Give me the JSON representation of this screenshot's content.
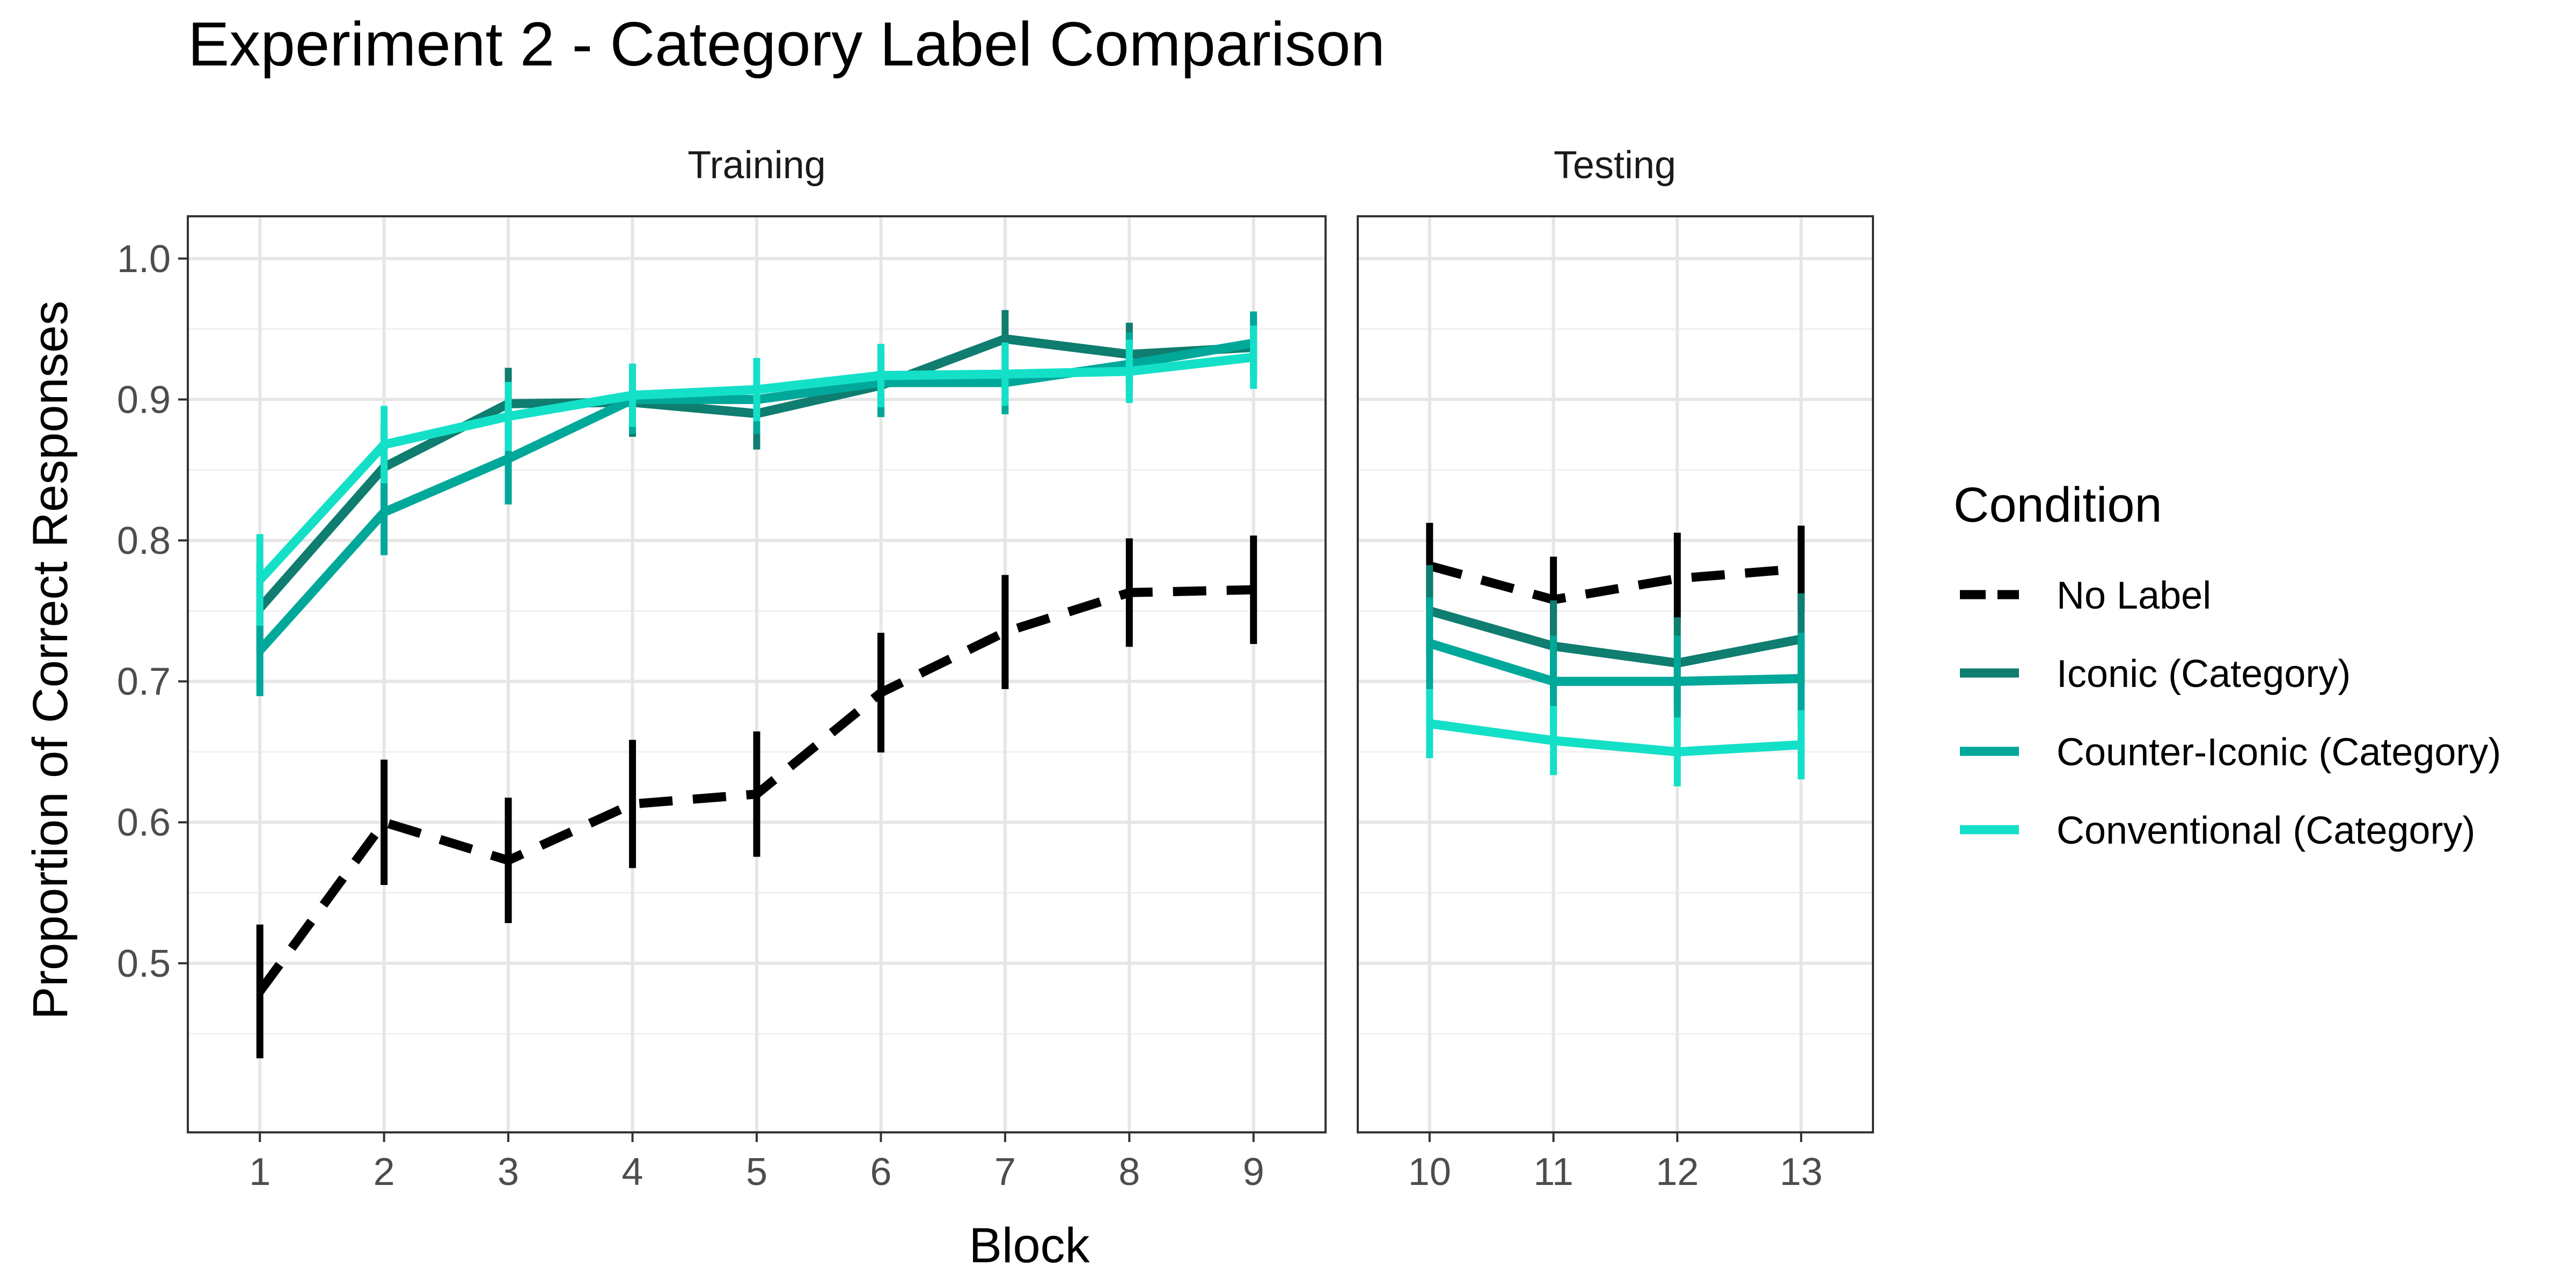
{
  "chart_data": {
    "type": "line",
    "title": "Experiment 2 - Category Label Comparison",
    "xlabel": "Block",
    "ylabel": "Proportion of Correct Responses",
    "ylim": [
      0.38,
      1.03
    ],
    "yticks": [
      0.5,
      0.6,
      0.7,
      0.8,
      0.9,
      1.0
    ],
    "ytick_labels": [
      "0.5",
      "0.6",
      "0.7",
      "0.8",
      "0.9",
      "1.0"
    ],
    "grid": true,
    "legend": {
      "title": "Condition",
      "position": "right"
    },
    "panels": [
      {
        "label": "Training",
        "x": [
          1,
          2,
          3,
          4,
          5,
          6,
          7,
          8,
          9
        ],
        "xlim": [
          0.42,
          9.58
        ]
      },
      {
        "label": "Testing",
        "x": [
          10,
          11,
          12,
          13
        ],
        "xlim": [
          9.42,
          13.58
        ]
      }
    ],
    "series": [
      {
        "name": "No Label",
        "color": "#000000",
        "dashed": true,
        "values": [
          0.48,
          0.6,
          0.573,
          0.613,
          0.62,
          0.692,
          0.735,
          0.763,
          0.765,
          0.782,
          0.758,
          0.773,
          0.78
        ],
        "errors": [
          0.045,
          0.042,
          0.042,
          0.043,
          0.042,
          0.04,
          0.038,
          0.036,
          0.036,
          0.028,
          0.028,
          0.03,
          0.028
        ]
      },
      {
        "name": "Iconic (Category)",
        "color": "#0f7d6f",
        "dashed": false,
        "values": [
          0.752,
          0.852,
          0.897,
          0.898,
          0.89,
          0.91,
          0.943,
          0.932,
          0.937,
          0.75,
          0.725,
          0.713,
          0.73
        ],
        "errors": [
          0.03,
          0.027,
          0.023,
          0.022,
          0.023,
          0.02,
          0.018,
          0.02,
          0.02,
          0.03,
          0.03,
          0.03,
          0.03
        ]
      },
      {
        "name": "Counter-Iconic (Category)",
        "color": "#00a89a",
        "dashed": false,
        "values": [
          0.722,
          0.82,
          0.858,
          0.9,
          0.9,
          0.912,
          0.912,
          0.925,
          0.94,
          0.727,
          0.7,
          0.7,
          0.702
        ],
        "errors": [
          0.03,
          0.028,
          0.03,
          0.022,
          0.022,
          0.022,
          0.02,
          0.02,
          0.02,
          0.03,
          0.03,
          0.03,
          0.03
        ]
      },
      {
        "name": "Conventional (Category)",
        "color": "#14e0c8",
        "dashed": false,
        "values": [
          0.772,
          0.868,
          0.888,
          0.903,
          0.907,
          0.917,
          0.918,
          0.92,
          0.93,
          0.67,
          0.658,
          0.65,
          0.655
        ],
        "errors": [
          0.03,
          0.025,
          0.022,
          0.02,
          0.02,
          0.02,
          0.02,
          0.02,
          0.02,
          0.022,
          0.022,
          0.022,
          0.022
        ]
      }
    ]
  }
}
